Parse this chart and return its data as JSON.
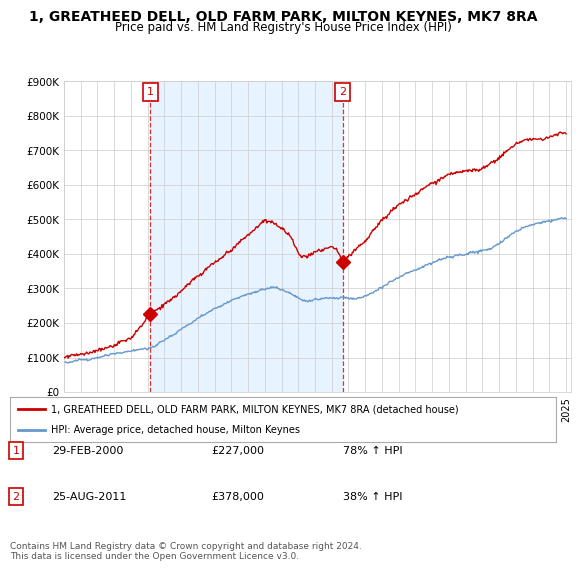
{
  "title": "1, GREATHEED DELL, OLD FARM PARK, MILTON KEYNES, MK7 8RA",
  "subtitle": "Price paid vs. HM Land Registry's House Price Index (HPI)",
  "title_fontsize": 10,
  "subtitle_fontsize": 8.5,
  "ylim": [
    0,
    900000
  ],
  "yticks": [
    0,
    100000,
    200000,
    300000,
    400000,
    500000,
    600000,
    700000,
    800000,
    900000
  ],
  "ytick_labels": [
    "£0",
    "£100K",
    "£200K",
    "£300K",
    "£400K",
    "£500K",
    "£600K",
    "£700K",
    "£800K",
    "£900K"
  ],
  "sale1_year": 2000.16,
  "sale1_price": 227000,
  "sale1_label": "1",
  "sale1_date": "29-FEB-2000",
  "sale1_price_str": "£227,000",
  "sale1_hpi": "78% ↑ HPI",
  "sale2_year": 2011.65,
  "sale2_price": 378000,
  "sale2_label": "2",
  "sale2_date": "25-AUG-2011",
  "sale2_price_str": "£378,000",
  "sale2_hpi": "38% ↑ HPI",
  "red_color": "#cc0000",
  "blue_color": "#6699cc",
  "fill_color": "#ddeeff",
  "legend_line1": "1, GREATHEED DELL, OLD FARM PARK, MILTON KEYNES, MK7 8RA (detached house)",
  "legend_line2": "HPI: Average price, detached house, Milton Keynes",
  "footnote": "Contains HM Land Registry data © Crown copyright and database right 2024.\nThis data is licensed under the Open Government Licence v3.0.",
  "bg_color": "#ffffff",
  "grid_color": "#cccccc"
}
